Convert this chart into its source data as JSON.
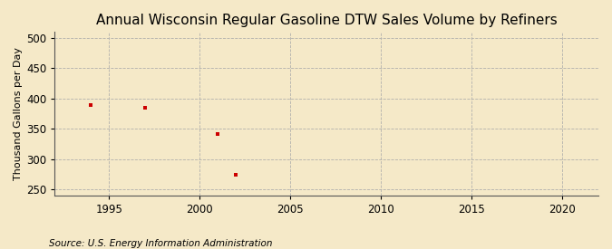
{
  "title": "Annual Wisconsin Regular Gasoline DTW Sales Volume by Refiners",
  "ylabel": "Thousand Gallons per Day",
  "source": "Source: U.S. Energy Information Administration",
  "x_data": [
    1994,
    1997,
    2001,
    2002
  ],
  "y_data": [
    390,
    385,
    341,
    275
  ],
  "point_color": "#cc0000",
  "point_marker": "s",
  "point_size": 10,
  "xlim": [
    1992,
    2022
  ],
  "ylim": [
    240,
    510
  ],
  "xticks": [
    1995,
    2000,
    2005,
    2010,
    2015,
    2020
  ],
  "yticks": [
    250,
    300,
    350,
    400,
    450,
    500
  ],
  "bg_color": "#f5e9c8",
  "plot_bg_color": "#f5e9c8",
  "grid_color": "#aaaaaa",
  "title_fontsize": 11,
  "label_fontsize": 8,
  "tick_fontsize": 8.5,
  "source_fontsize": 7.5
}
